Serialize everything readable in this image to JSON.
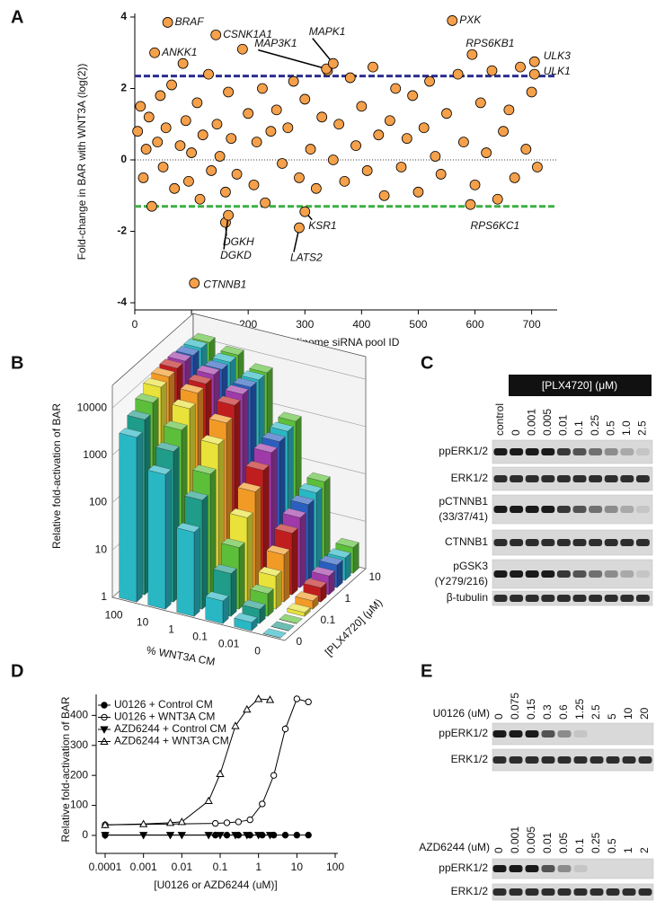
{
  "panel_labels": [
    "A",
    "B",
    "C",
    "D",
    "E"
  ],
  "chart_data": [
    {
      "type": "scatter",
      "x_label": "Kinome siRNA pool ID",
      "y_label": "Fold-change in BAR with WNT3A (log(2))",
      "xlim": [
        0,
        745
      ],
      "ylim": [
        -4.2,
        4.1
      ],
      "xticks": [
        0,
        100,
        200,
        300,
        400,
        500,
        600,
        700
      ],
      "yticks": [
        -4,
        -2,
        0,
        2,
        4
      ],
      "color": "#f5a04a",
      "zero_line": true,
      "upper_threshold": {
        "value": 2.35,
        "color": "#2b2f8f"
      },
      "lower_threshold": {
        "value": -1.3,
        "color": "#3cb043"
      },
      "series": [
        {
          "x": [
            5,
            10,
            15,
            20,
            25,
            30,
            40,
            45,
            50,
            55,
            65,
            70,
            80,
            85,
            90,
            95,
            100,
            110,
            115,
            120,
            130,
            135,
            145,
            150,
            160,
            165,
            170,
            180,
            190,
            200,
            210,
            215,
            225,
            230,
            240,
            250,
            260,
            270,
            280,
            290,
            300,
            310,
            320,
            330,
            340,
            350,
            360,
            370,
            380,
            390,
            400,
            410,
            420,
            430,
            440,
            450,
            460,
            470,
            480,
            490,
            500,
            510,
            520,
            530,
            540,
            550,
            570,
            580,
            600,
            610,
            620,
            630,
            640,
            650,
            660,
            670,
            680,
            690,
            700,
            710
          ],
          "values": [
            0.8,
            1.5,
            -0.5,
            0.3,
            1.2,
            -1.3,
            0.5,
            1.8,
            -0.2,
            0.9,
            2.1,
            -0.8,
            0.4,
            2.7,
            1.1,
            -0.6,
            0.2,
            1.6,
            -1.1,
            0.7,
            2.4,
            -0.3,
            1.0,
            0.1,
            -0.9,
            1.9,
            0.6,
            -0.4,
            3.1,
            1.3,
            -0.7,
            0.5,
            2.0,
            -1.2,
            0.8,
            1.4,
            -0.1,
            0.9,
            2.2,
            -0.5,
            1.7,
            0.3,
            -0.8,
            1.2,
            2.5,
            0.0,
            1.0,
            -0.6,
            2.3,
            0.4,
            1.5,
            -0.3,
            2.6,
            0.7,
            -1.0,
            1.1,
            2.0,
            -0.2,
            0.6,
            1.8,
            -0.9,
            0.9,
            2.2,
            0.1,
            -0.4,
            1.3,
            2.4,
            0.5,
            -0.7,
            1.6,
            0.2,
            2.5,
            -1.1,
            0.8,
            1.4,
            -0.5,
            2.6,
            0.3,
            1.9,
            -0.2
          ]
        }
      ],
      "annotations": [
        {
          "text": "BRAF",
          "x": 58,
          "y": 3.85,
          "color": "#e8352a"
        },
        {
          "text": "ANKK1",
          "x": 35,
          "y": 3.0
        },
        {
          "text": "CSNK1A1",
          "x": 143,
          "y": 3.5
        },
        {
          "text": "MAP3K1",
          "x": 338,
          "y": 2.55
        },
        {
          "text": "MAPK1",
          "x": 350,
          "y": 2.7
        },
        {
          "text": "PXK",
          "x": 560,
          "y": 3.9
        },
        {
          "text": "RPS6KB1",
          "x": 595,
          "y": 2.95
        },
        {
          "text": "ULK3",
          "x": 705,
          "y": 2.75
        },
        {
          "text": "ULK1",
          "x": 705,
          "y": 2.4
        },
        {
          "text": "DGKH",
          "x": 160,
          "y": -1.75
        },
        {
          "text": "DGKD",
          "x": 165,
          "y": -1.55
        },
        {
          "text": "KSR1",
          "x": 300,
          "y": -1.45
        },
        {
          "text": "LATS2",
          "x": 290,
          "y": -1.9
        },
        {
          "text": "RPS6KC1",
          "x": 592,
          "y": -1.25
        },
        {
          "text": "CTNNB1",
          "x": 105,
          "y": -3.45
        }
      ]
    },
    {
      "type": "bar3d",
      "y_label": "Relative fold-activation of BAR",
      "x_label": "% WNT3A CM",
      "depth_label": "[PLX4720] (μM)",
      "categories": [
        "100",
        "10",
        "1",
        "0.1",
        "0.01",
        "0"
      ],
      "depth_categories": [
        "0",
        null,
        null,
        "0.1",
        null,
        null,
        "1",
        null,
        null,
        "10"
      ],
      "log_scale": true,
      "ylim": [
        1,
        30000
      ],
      "yticks": [
        1,
        10,
        100,
        1000,
        10000
      ],
      "series": [
        {
          "color": "#2ab7c4",
          "values": [
            3000,
            700,
            60,
            3,
            1.5,
            1
          ]
        },
        {
          "color": "#1f9c8a",
          "values": [
            5000,
            1500,
            200,
            8,
            2,
            1
          ]
        },
        {
          "color": "#5cbf3a",
          "values": [
            8000,
            3000,
            500,
            20,
            3,
            1
          ]
        },
        {
          "color": "#e8e23a",
          "values": [
            12000,
            6000,
            1500,
            60,
            5,
            1.2
          ]
        },
        {
          "color": "#f29a26",
          "values": [
            14000,
            9000,
            3000,
            150,
            10,
            1.5
          ]
        },
        {
          "color": "#c01e1e",
          "values": [
            15000,
            10000,
            5000,
            300,
            20,
            2
          ]
        },
        {
          "color": "#a03aa8",
          "values": [
            15000,
            11000,
            6000,
            500,
            30,
            2.5
          ]
        },
        {
          "color": "#2a5fc0",
          "values": [
            14000,
            10000,
            6000,
            600,
            40,
            3
          ]
        },
        {
          "color": "#2ab7c4",
          "values": [
            14000,
            10000,
            6000,
            700,
            50,
            3
          ]
        },
        {
          "color": "#5cbf3a",
          "values": [
            13000,
            10000,
            6000,
            800,
            60,
            3.5
          ]
        }
      ]
    },
    {
      "type": "line",
      "y_label": "Relative fold-activation of BAR",
      "x_label": "[U0126 or AZD6244 (uM)]",
      "log_x": true,
      "xlim": [
        0.0001,
        100
      ],
      "xticks": [
        0.0001,
        0.001,
        0.01,
        0.1,
        1,
        10,
        100
      ],
      "ylim": [
        -60,
        470
      ],
      "yticks": [
        0,
        100,
        200,
        300,
        400
      ],
      "legend": "upper left",
      "series": [
        {
          "name": "U0126 + Control CM",
          "color": "#000000",
          "marker": "circle",
          "filled": true,
          "x": [
            0.0001,
            0.075,
            0.15,
            0.3,
            0.6,
            1.25,
            2.5,
            5,
            10,
            20
          ],
          "values": [
            1,
            1,
            1,
            1,
            1,
            1,
            1,
            1,
            1,
            1
          ]
        },
        {
          "name": "U0126 + WNT3A CM",
          "color": "#000000",
          "marker": "circle",
          "filled": false,
          "x": [
            0.0001,
            0.075,
            0.15,
            0.3,
            0.6,
            1.25,
            2.5,
            5,
            10,
            20
          ],
          "values": [
            35,
            40,
            42,
            45,
            52,
            105,
            200,
            355,
            455,
            445
          ],
          "errors": [
            2,
            2,
            2,
            3,
            4,
            6,
            8,
            12,
            5,
            5
          ]
        },
        {
          "name": "AZD6244 + Control CM",
          "color": "#000000",
          "marker": "triangle-down",
          "filled": true,
          "x": [
            0.0001,
            0.001,
            0.005,
            0.01,
            0.05,
            0.1,
            0.25,
            0.5,
            1,
            2
          ],
          "values": [
            1,
            1,
            1,
            1,
            1,
            1,
            1,
            1,
            1,
            1
          ]
        },
        {
          "name": "AZD6244 + WNT3A CM",
          "color": "#000000",
          "marker": "triangle-up",
          "filled": false,
          "x": [
            0.0001,
            0.001,
            0.005,
            0.01,
            0.05,
            0.1,
            0.25,
            0.5,
            1,
            2
          ],
          "values": [
            35,
            38,
            42,
            45,
            115,
            205,
            365,
            420,
            455,
            452
          ],
          "errors": [
            2,
            2,
            2,
            3,
            7,
            9,
            10,
            10,
            6,
            5
          ]
        }
      ]
    }
  ],
  "blots": {
    "C": {
      "header": "[PLX4720] (μM)",
      "lanes": [
        "control",
        "0",
        "0.001",
        "0.005",
        "0.01",
        "0.1",
        "0.25",
        "0.5",
        "1.0",
        "2.5"
      ],
      "rows": [
        [
          "ppERK1/2"
        ],
        [
          "ERK1/2"
        ],
        [
          "pCTNNB1",
          "(33/37/41)"
        ],
        [
          "CTNNB1"
        ],
        [
          "pGSK3",
          "(Y279/216)"
        ],
        [
          "β-tubulin"
        ]
      ]
    },
    "E": [
      {
        "treatment": "U0126 (uM)",
        "lanes": [
          "0",
          "0.075",
          "0.15",
          "0.3",
          "0.6",
          "1.25",
          "2.5",
          "5",
          "10",
          "20"
        ],
        "rows": [
          "ppERK1/2",
          "ERK1/2"
        ]
      },
      {
        "treatment": "AZD6244 (uM)",
        "lanes": [
          "0",
          "0.001",
          "0.005",
          "0.01",
          "0.05",
          "0.1",
          "0.25",
          "0.5",
          "1",
          "2"
        ],
        "rows": [
          "ppERK1/2",
          "ERK1/2"
        ]
      }
    ]
  }
}
